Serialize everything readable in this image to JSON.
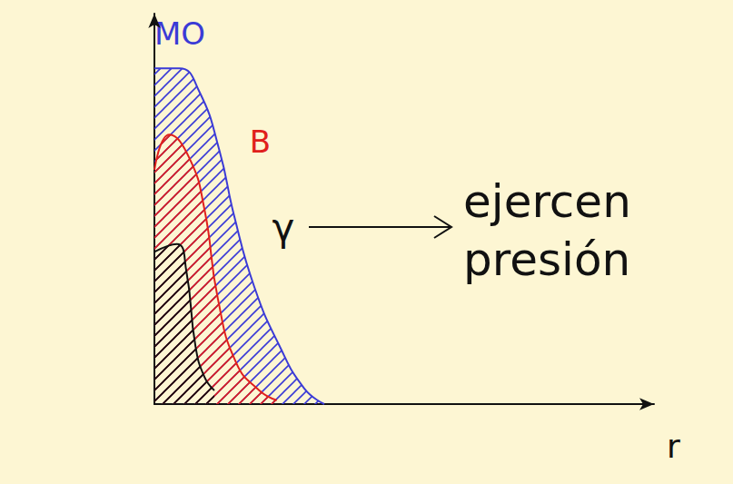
{
  "chart_data": {
    "type": "line",
    "xlabel": "r",
    "xlim": [
      0,
      10
    ],
    "ylim": [
      0,
      10
    ],
    "tick_labels": false,
    "grid": false,
    "series": [
      {
        "name": "MO",
        "color": "#3b3bd6",
        "x": [
          0,
          0.5,
          0.9,
          1.3,
          1.6,
          2.0,
          2.5,
          3.0,
          3.4
        ],
        "values": [
          8.6,
          8.6,
          8.0,
          6.5,
          4.8,
          3.0,
          1.5,
          0.4,
          0
        ]
      },
      {
        "name": "B",
        "color": "#e0201c",
        "x": [
          0,
          0.3,
          0.7,
          1.0,
          1.27,
          1.64,
          2.1,
          2.45
        ],
        "values": [
          6.0,
          6.9,
          6.3,
          5.0,
          2.7,
          1.05,
          0.35,
          0.1
        ]
      },
      {
        "color": "#111111",
        "x": [
          0,
          0.45,
          0.64,
          0.82,
          1.0,
          1.2
        ],
        "values": [
          3.9,
          4.1,
          3.4,
          1.5,
          0.7,
          0.35
        ]
      }
    ],
    "annotations": [
      {
        "text": "γ"
      },
      {
        "text": "ejercen presión"
      }
    ]
  }
}
